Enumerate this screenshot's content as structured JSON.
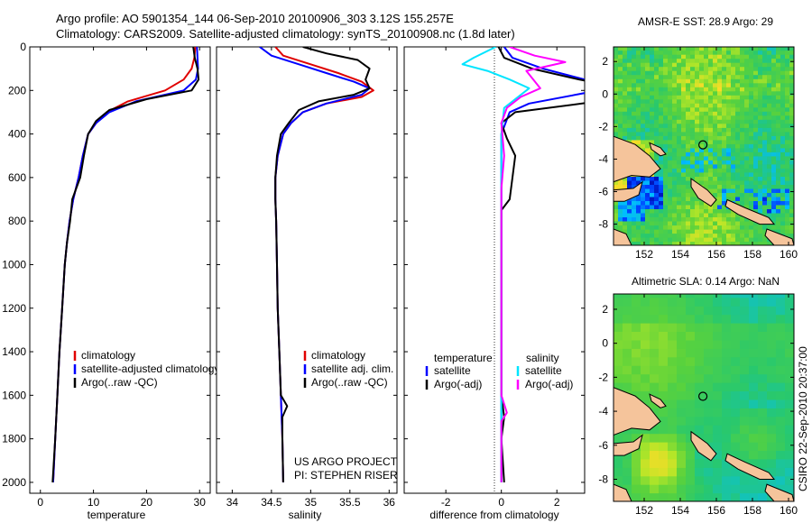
{
  "header": {
    "line1": "Argo profile: AO 5901354_144 06-Sep-2010 20100906_303 3.12S 155.257E",
    "line2": "Climatology: CARS2009. Satellite-adjusted climatology: synTS_20100908.nc (1.8d later)"
  },
  "side_text": "CSIRO 22-Sep-2010 20:37:00",
  "credits": [
    "US ARGO PROJECT",
    "PI: STEPHEN RISER"
  ],
  "colors": {
    "climatology": "#e00000",
    "satellite": "#0000ff",
    "argo": "#000000",
    "sat_salinity": "#00e5ff",
    "argo_salinity_diff": "#ff00ff",
    "land": "#f5c49b"
  },
  "chart_data": [
    {
      "type": "line",
      "id": "temperature",
      "xlabel": "temperature",
      "xlim": [
        -2,
        32
      ],
      "ylim": [
        2050,
        0
      ],
      "xticks": [
        0,
        10,
        20,
        30
      ],
      "yticks": [
        0,
        200,
        400,
        600,
        800,
        1000,
        1200,
        1400,
        1600,
        1800,
        2000
      ],
      "legend": [
        "climatology",
        "satellite-adjusted climatology",
        "Argo(..raw -QC)"
      ],
      "series": [
        {
          "name": "climatology",
          "color": "#e00000",
          "points": [
            [
              29.2,
              0
            ],
            [
              29.0,
              50
            ],
            [
              28.5,
              100
            ],
            [
              27.0,
              150
            ],
            [
              23.5,
              200
            ],
            [
              16.5,
              250
            ],
            [
              12.5,
              300
            ],
            [
              10.5,
              350
            ],
            [
              9.0,
              400
            ],
            [
              8.0,
              500
            ],
            [
              7.2,
              600
            ],
            [
              6.2,
              700
            ],
            [
              5.5,
              800
            ],
            [
              5.0,
              900
            ],
            [
              4.6,
              1000
            ],
            [
              4.1,
              1200
            ],
            [
              3.6,
              1400
            ],
            [
              3.2,
              1600
            ],
            [
              2.8,
              1800
            ],
            [
              2.4,
              2000
            ]
          ]
        },
        {
          "name": "satellite-adjusted climatology",
          "color": "#0000ff",
          "points": [
            [
              29.5,
              0
            ],
            [
              29.6,
              50
            ],
            [
              29.7,
              100
            ],
            [
              29.3,
              150
            ],
            [
              27.0,
              200
            ],
            [
              18.0,
              250
            ],
            [
              13.0,
              300
            ],
            [
              10.5,
              350
            ],
            [
              9.0,
              400
            ],
            [
              8.0,
              500
            ],
            [
              7.2,
              600
            ],
            [
              6.2,
              700
            ],
            [
              5.5,
              800
            ],
            [
              5.0,
              900
            ],
            [
              4.6,
              1000
            ],
            [
              4.1,
              1200
            ],
            [
              3.6,
              1400
            ],
            [
              3.2,
              1600
            ],
            [
              2.8,
              1800
            ],
            [
              2.4,
              2000
            ]
          ]
        },
        {
          "name": "Argo(..raw -QC)",
          "color": "#000000",
          "points": [
            [
              28.8,
              0
            ],
            [
              29.1,
              50
            ],
            [
              29.6,
              100
            ],
            [
              29.8,
              150
            ],
            [
              28.5,
              200
            ],
            [
              20.0,
              240
            ],
            [
              13.0,
              290
            ],
            [
              10.5,
              340
            ],
            [
              9.0,
              400
            ],
            [
              8.2,
              500
            ],
            [
              7.5,
              600
            ],
            [
              6.0,
              700
            ],
            [
              5.6,
              800
            ],
            [
              5.0,
              900
            ],
            [
              4.6,
              1000
            ],
            [
              4.1,
              1200
            ],
            [
              3.6,
              1400
            ],
            [
              3.2,
              1600
            ],
            [
              2.8,
              1800
            ],
            [
              2.3,
              2000
            ]
          ]
        }
      ]
    },
    {
      "type": "line",
      "id": "salinity",
      "xlabel": "salinity",
      "xlim": [
        33.8,
        36.1
      ],
      "ylim": [
        2050,
        0
      ],
      "xticks": [
        34,
        34.5,
        35,
        35.5,
        36
      ],
      "legend": [
        "climatology",
        "satellite adj. clim.",
        "Argo(..raw -QC)"
      ],
      "series": [
        {
          "name": "climatology",
          "color": "#e00000",
          "points": [
            [
              34.55,
              0
            ],
            [
              34.65,
              40
            ],
            [
              35.0,
              80
            ],
            [
              35.35,
              120
            ],
            [
              35.65,
              160
            ],
            [
              35.8,
              200
            ],
            [
              35.65,
              230
            ],
            [
              35.2,
              260
            ],
            [
              34.9,
              300
            ],
            [
              34.75,
              350
            ],
            [
              34.65,
              400
            ],
            [
              34.58,
              500
            ],
            [
              34.55,
              600
            ],
            [
              34.55,
              700
            ],
            [
              34.56,
              800
            ],
            [
              34.57,
              1000
            ],
            [
              34.58,
              1200
            ],
            [
              34.6,
              1400
            ],
            [
              34.62,
              1600
            ],
            [
              34.64,
              1800
            ],
            [
              34.65,
              2000
            ]
          ]
        },
        {
          "name": "satellite adj. clim.",
          "color": "#0000ff",
          "points": [
            [
              34.35,
              0
            ],
            [
              34.5,
              40
            ],
            [
              34.85,
              80
            ],
            [
              35.2,
              120
            ],
            [
              35.55,
              160
            ],
            [
              35.75,
              190
            ],
            [
              35.65,
              220
            ],
            [
              35.2,
              260
            ],
            [
              34.9,
              300
            ],
            [
              34.75,
              350
            ],
            [
              34.65,
              400
            ],
            [
              34.58,
              500
            ],
            [
              34.55,
              600
            ],
            [
              34.55,
              700
            ],
            [
              34.56,
              800
            ],
            [
              34.57,
              1000
            ],
            [
              34.58,
              1200
            ],
            [
              34.6,
              1400
            ],
            [
              34.62,
              1600
            ],
            [
              34.64,
              1800
            ],
            [
              34.65,
              2000
            ]
          ]
        },
        {
          "name": "Argo(..raw -QC)",
          "color": "#000000",
          "points": [
            [
              34.9,
              0
            ],
            [
              35.2,
              30
            ],
            [
              35.6,
              60
            ],
            [
              35.75,
              100
            ],
            [
              35.7,
              150
            ],
            [
              35.75,
              190
            ],
            [
              35.55,
              220
            ],
            [
              35.1,
              250
            ],
            [
              34.85,
              290
            ],
            [
              34.72,
              350
            ],
            [
              34.62,
              400
            ],
            [
              34.57,
              500
            ],
            [
              34.55,
              600
            ],
            [
              34.55,
              700
            ],
            [
              34.56,
              800
            ],
            [
              34.57,
              1000
            ],
            [
              34.58,
              1200
            ],
            [
              34.6,
              1400
            ],
            [
              34.62,
              1600
            ],
            [
              34.7,
              1650
            ],
            [
              34.64,
              1700
            ],
            [
              34.64,
              1800
            ],
            [
              34.65,
              2000
            ]
          ]
        }
      ]
    },
    {
      "type": "line",
      "id": "difference",
      "xlabel": "difference from climatology",
      "xlim": [
        -3.5,
        3.0
      ],
      "ylim": [
        2050,
        0
      ],
      "xticks": [
        -2,
        0,
        2
      ],
      "legend_left_title": "temperature",
      "legend_right_title": "salinity",
      "legend": [
        "satellite",
        "Argo(-adj)",
        "satellite",
        "Argo(-adj)"
      ],
      "series": [
        {
          "name": "satellite",
          "group": "temperature",
          "color": "#0000ff",
          "points": [
            [
              0.1,
              0
            ],
            [
              0.4,
              50
            ],
            [
              1.5,
              100
            ],
            [
              3.0,
              150
            ],
            [
              3.5,
              200
            ],
            [
              1.0,
              260
            ],
            [
              0.3,
              300
            ],
            [
              0.0,
              400
            ],
            [
              0.0,
              600
            ],
            [
              0.0,
              800
            ],
            [
              0.0,
              1000
            ],
            [
              0.0,
              1200
            ],
            [
              0.0,
              1400
            ],
            [
              0.0,
              1600
            ],
            [
              0.0,
              1800
            ],
            [
              0.0,
              2000
            ]
          ]
        },
        {
          "name": "Argo(-adj)",
          "group": "temperature",
          "color": "#000000",
          "points": [
            [
              -0.1,
              0
            ],
            [
              0.1,
              50
            ],
            [
              1.1,
              100
            ],
            [
              2.8,
              150
            ],
            [
              5.0,
              200
            ],
            [
              3.5,
              250
            ],
            [
              0.5,
              300
            ],
            [
              0.0,
              350
            ],
            [
              0.2,
              420
            ],
            [
              0.5,
              500
            ],
            [
              0.4,
              600
            ],
            [
              0.3,
              700
            ],
            [
              0.0,
              750
            ],
            [
              0.0,
              1000
            ],
            [
              0.0,
              1400
            ],
            [
              0.0,
              1600
            ],
            [
              0.1,
              1700
            ],
            [
              0.0,
              1800
            ],
            [
              0.1,
              2000
            ]
          ]
        },
        {
          "name": "satellite",
          "group": "salinity",
          "color": "#00e5ff",
          "points": [
            [
              -0.2,
              0
            ],
            [
              -1.0,
              50
            ],
            [
              -1.4,
              80
            ],
            [
              -0.5,
              110
            ],
            [
              0.3,
              150
            ],
            [
              1.0,
              190
            ],
            [
              0.6,
              230
            ],
            [
              0.1,
              280
            ],
            [
              0.0,
              400
            ],
            [
              0.0,
              600
            ],
            [
              0.0,
              800
            ],
            [
              0.0,
              1000
            ],
            [
              0.0,
              1200
            ],
            [
              0.0,
              1400
            ],
            [
              0.0,
              1600
            ],
            [
              0.0,
              1800
            ],
            [
              0.0,
              2000
            ]
          ]
        },
        {
          "name": "Argo(-adj)",
          "group": "salinity",
          "color": "#ff00ff",
          "points": [
            [
              0.3,
              0
            ],
            [
              1.2,
              40
            ],
            [
              2.3,
              70
            ],
            [
              0.9,
              110
            ],
            [
              1.4,
              190
            ],
            [
              0.7,
              230
            ],
            [
              0.2,
              280
            ],
            [
              0.0,
              350
            ],
            [
              0.1,
              500
            ],
            [
              0.0,
              650
            ],
            [
              0.0,
              1000
            ],
            [
              0.0,
              1400
            ],
            [
              0.0,
              1600
            ],
            [
              0.2,
              1680
            ],
            [
              0.0,
              1720
            ],
            [
              0.0,
              1800
            ],
            [
              0.0,
              2000
            ]
          ]
        }
      ]
    },
    {
      "type": "heatmap",
      "id": "sst_map",
      "title": "AMSR-E SST: 28.9 Argo: 29",
      "xlim": [
        150.3,
        160.3
      ],
      "ylim": [
        -9.3,
        2.9
      ],
      "xticks": [
        152,
        154,
        156,
        158,
        160
      ],
      "yticks": [
        2,
        0,
        -2,
        -4,
        -6,
        -8
      ],
      "marker": {
        "lon": 155.257,
        "lat": -3.12
      }
    },
    {
      "type": "heatmap",
      "id": "sla_map",
      "title": "Altimetric SLA: 0.14 Argo: NaN",
      "xlim": [
        150.3,
        160.3
      ],
      "ylim": [
        -9.3,
        2.9
      ],
      "xticks": [
        152,
        154,
        156,
        158,
        160
      ],
      "yticks": [
        2,
        0,
        -2,
        -4,
        -6,
        -8
      ],
      "marker": {
        "lon": 155.257,
        "lat": -3.12
      }
    }
  ]
}
